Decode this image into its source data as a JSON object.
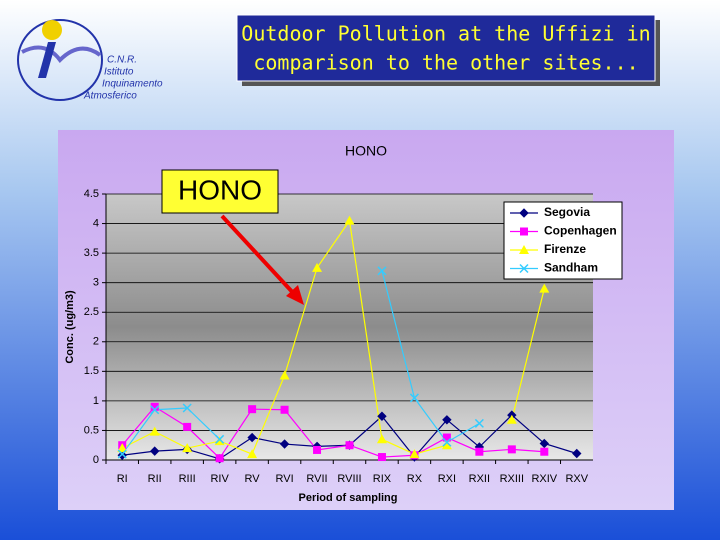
{
  "slide": {
    "title": [
      "Outdoor Pollution at the Uffizi in",
      "comparison to the other sites..."
    ]
  },
  "logo": [
    "C.N.R.",
    "Istituto",
    "Inquinamento",
    "Atmosferico"
  ],
  "chart_data": {
    "type": "line",
    "title": "HONO",
    "annotation": "HONO",
    "x_label": "Period of sampling",
    "y_label": "Conc. (ug/m3)",
    "categories": [
      "RI",
      "RII",
      "RIII",
      "RIV",
      "RV",
      "RVI",
      "RVII",
      "RVIII",
      "RIX",
      "RX",
      "RXI",
      "RXII",
      "RXIII",
      "RXIV",
      "RXV"
    ],
    "series": [
      {
        "name": "Segovia",
        "color": "#000080",
        "marker": "diamond",
        "values": [
          0.08,
          0.15,
          0.18,
          0.02,
          0.38,
          0.27,
          0.23,
          0.25,
          0.74,
          0.05,
          0.68,
          0.22,
          0.76,
          0.28,
          0.11
        ]
      },
      {
        "name": "Copenhagen",
        "color": "#ff00ff",
        "marker": "square",
        "values": [
          0.25,
          0.9,
          0.56,
          0.03,
          0.86,
          0.85,
          0.17,
          0.25,
          0.05,
          0.08,
          0.38,
          0.14,
          0.18,
          0.14,
          null
        ]
      },
      {
        "name": "Firenze",
        "color": "#ffff00",
        "marker": "triangle",
        "values": [
          0.2,
          0.48,
          0.2,
          0.32,
          0.1,
          1.43,
          3.25,
          4.05,
          0.35,
          0.1,
          0.25,
          null,
          0.68,
          2.9,
          null
        ]
      },
      {
        "name": "Sandham",
        "color": "#33ccff",
        "marker": "x",
        "values": [
          0.1,
          0.85,
          0.88,
          0.35,
          null,
          null,
          null,
          null,
          3.2,
          1.05,
          0.3,
          0.62,
          null,
          null,
          null
        ]
      }
    ],
    "ylim": [
      0,
      4.5
    ],
    "yticks": [
      0,
      0.5,
      1,
      1.5,
      2,
      2.5,
      3,
      3.5,
      4,
      4.5
    ],
    "grid": true,
    "legend": "top-right"
  }
}
